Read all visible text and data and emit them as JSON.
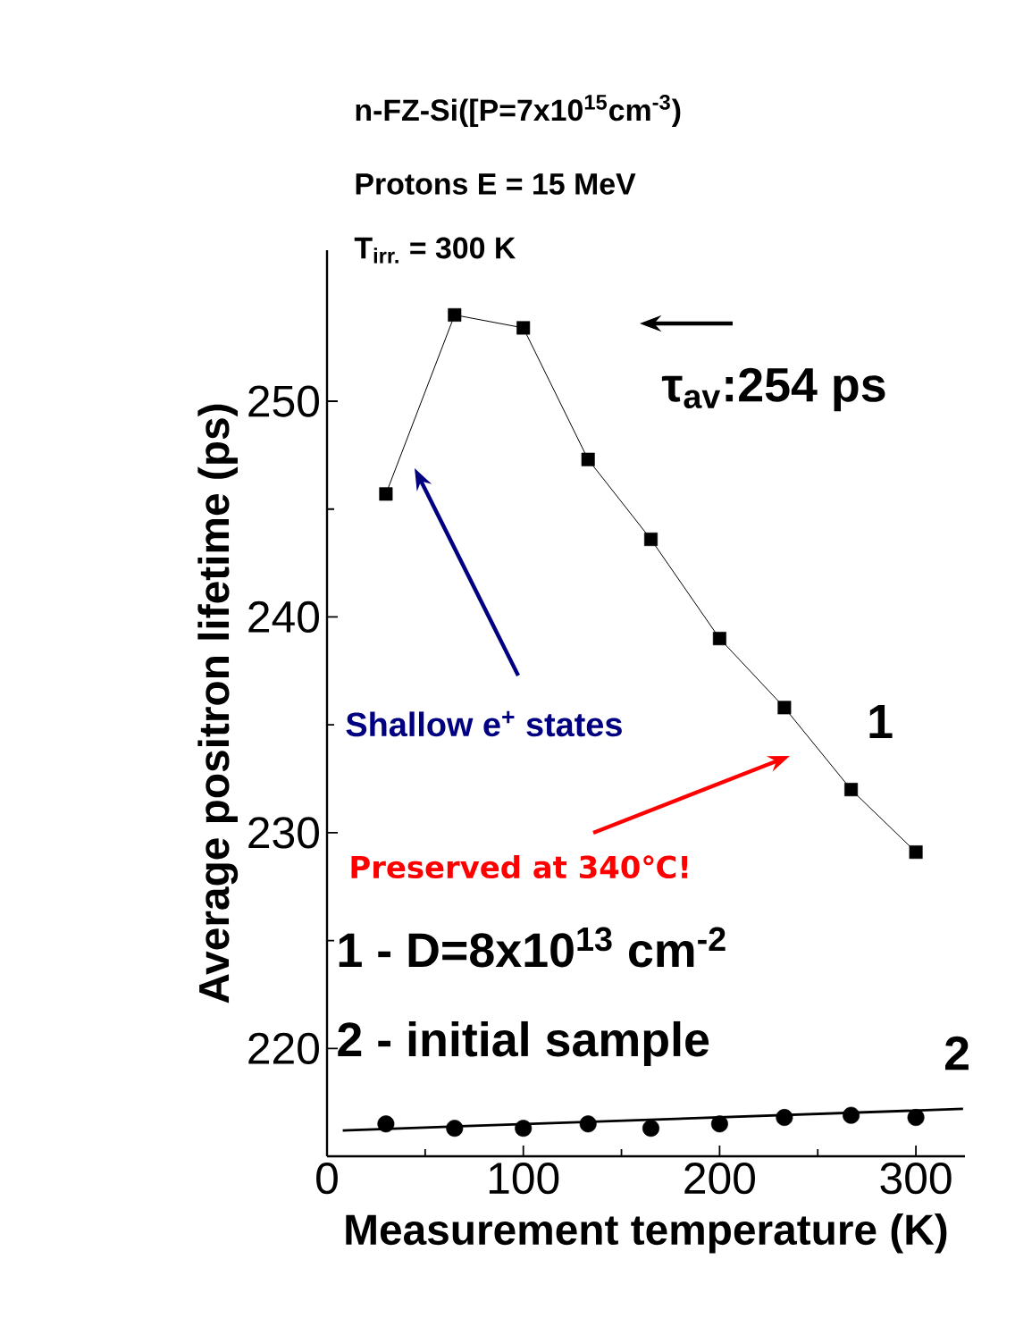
{
  "chart_data": {
    "type": "line",
    "xlabel": "Measurement temperature (K)",
    "ylabel": "Average positron lifetime (ps)",
    "xlim": [
      0,
      325
    ],
    "ylim": [
      215,
      257
    ],
    "xticks": [
      0,
      100,
      200,
      300
    ],
    "yticks": [
      220,
      230,
      240,
      250
    ],
    "annotations": [
      "n-FZ-Si([P=7x10$^{15}$cm$^{-3}$)",
      "Protons E = 15 MeV",
      "T$_{irr.}$ = 300 K",
      "τ$_{av}$:254 ps",
      "Shallow e$^{+}$ states",
      "Preserved at 340℃!",
      "1 - D=8x10$^{13}$ cm$^{-2}$",
      "2 - initial sample"
    ],
    "series": [
      {
        "name": "1",
        "marker": "square",
        "color": "#000000",
        "x": [
          30,
          65,
          100,
          133,
          165,
          200,
          233,
          267,
          300
        ],
        "values": [
          245.7,
          254.0,
          253.4,
          247.3,
          243.6,
          239.0,
          235.8,
          232.0,
          229.1
        ]
      },
      {
        "name": "2",
        "type": "scatter",
        "marker": "circle",
        "color": "#000000",
        "x": [
          30,
          65,
          100,
          133,
          165,
          200,
          233,
          267,
          300
        ],
        "values": [
          216.5,
          216.3,
          216.3,
          216.5,
          216.3,
          216.5,
          216.8,
          216.9,
          216.8
        ]
      },
      {
        "marker": "none",
        "color": "#000000",
        "x": [
          8,
          324
        ],
        "values": [
          216.2,
          217.2
        ]
      }
    ]
  }
}
